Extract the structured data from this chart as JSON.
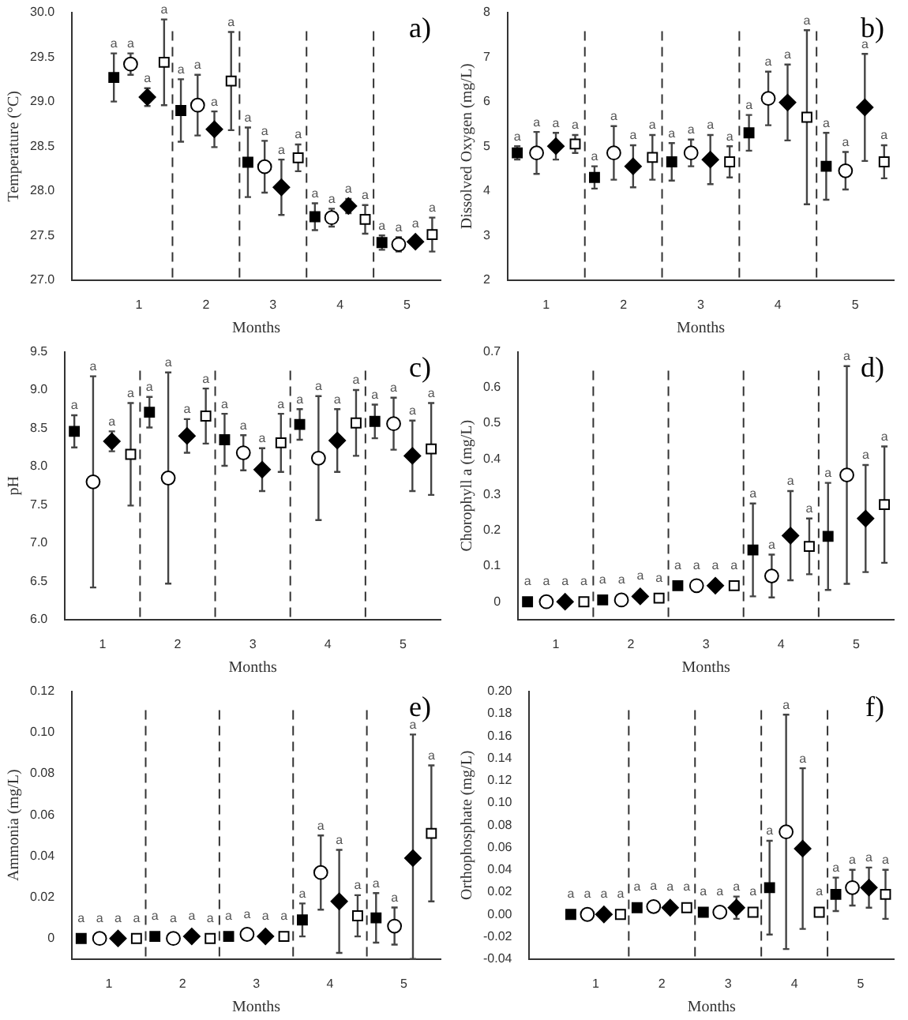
{
  "chart_data": [
    {
      "type": "scatter",
      "title": "a)",
      "xlabel": "Months",
      "ylabel": "Temperature (°C)",
      "xlim": [
        0,
        5.5
      ],
      "xticks": [
        1,
        2,
        3,
        4,
        5
      ],
      "ylim": [
        27,
        30
      ],
      "yticks": [
        {
          "value": 27,
          "label": "27.0"
        },
        27.5,
        {
          "value": 28,
          "label": "28.0"
        },
        28.5,
        {
          "value": 29,
          "label": "29.0"
        },
        29.5,
        {
          "value": 30,
          "label": "30.0"
        }
      ],
      "grid": false,
      "legend": false,
      "ref_lines": [
        {
          "axis": "x",
          "value": 1.5,
          "line_style": "dashed"
        },
        {
          "axis": "x",
          "value": 2.5,
          "line_style": "dashed"
        },
        {
          "axis": "x",
          "value": 3.5,
          "line_style": "dashed"
        },
        {
          "axis": "x",
          "value": 4.5,
          "line_style": "dashed"
        }
      ],
      "series": [
        {
          "color": "#000000",
          "marker": "square",
          "x": [
            0.625,
            1.625,
            2.625,
            3.625,
            4.625
          ],
          "values": [
            29.27,
            28.9,
            28.32,
            27.71,
            27.42
          ],
          "errors": [
            0.27,
            0.35,
            0.39,
            0.15,
            0.08
          ]
        },
        {
          "color": "#ffffff",
          "marker": "circle",
          "x": [
            0.875,
            1.875,
            2.875,
            3.875,
            4.875
          ],
          "values": [
            29.42,
            28.96,
            28.27,
            27.7,
            27.4
          ],
          "errors": [
            0.12,
            0.34,
            0.29,
            0.1,
            0.08
          ]
        },
        {
          "color": "#000000",
          "marker": "diamond",
          "x": [
            1.125,
            2.125,
            3.125,
            4.125,
            5.125
          ],
          "values": [
            29.05,
            28.69,
            28.04,
            27.83,
            27.43
          ],
          "errors": [
            0.1,
            0.2,
            0.31,
            0.08,
            null
          ]
        },
        {
          "color": "#ffffff",
          "marker": "square",
          "x": [
            1.375,
            2.375,
            3.375,
            4.375,
            5.375
          ],
          "values": [
            29.44,
            29.23,
            28.37,
            27.68,
            27.51
          ],
          "errors": [
            0.48,
            0.55,
            0.15,
            0.16,
            0.19
          ]
        }
      ],
      "annotations": [
        {
          "text": "a",
          "x": 0.625,
          "y": 29.54
        },
        {
          "text": "a",
          "x": 1.625,
          "y": 29.25
        },
        {
          "text": "a",
          "x": 2.625,
          "y": 28.71
        },
        {
          "text": "a",
          "x": 3.625,
          "y": 27.86
        },
        {
          "text": "a",
          "x": 4.625,
          "y": 27.5
        },
        {
          "text": "a",
          "x": 0.875,
          "y": 29.54
        },
        {
          "text": "a",
          "x": 1.875,
          "y": 29.3
        },
        {
          "text": "a",
          "x": 2.875,
          "y": 28.56
        },
        {
          "text": "a",
          "x": 3.875,
          "y": 27.8
        },
        {
          "text": "a",
          "x": 4.875,
          "y": 27.48
        },
        {
          "text": "a",
          "x": 1.125,
          "y": 29.15
        },
        {
          "text": "a",
          "x": 2.125,
          "y": 28.89
        },
        {
          "text": "a",
          "x": 3.125,
          "y": 28.35
        },
        {
          "text": "a",
          "x": 4.125,
          "y": 27.91
        },
        {
          "text": "a",
          "x": 5.125,
          "y": 27.52
        },
        {
          "text": "a",
          "x": 1.375,
          "y": 29.92
        },
        {
          "text": "a",
          "x": 2.375,
          "y": 29.78
        },
        {
          "text": "a",
          "x": 3.375,
          "y": 28.52
        },
        {
          "text": "a",
          "x": 4.375,
          "y": 27.84
        },
        {
          "text": "a",
          "x": 5.375,
          "y": 27.7
        }
      ]
    },
    {
      "type": "scatter",
      "title": "b)",
      "xlabel": "Months",
      "ylabel": "Dissolved Oxygen (mg/L)",
      "xlim": [
        0.5,
        5.5
      ],
      "xticks": [
        1,
        2,
        3,
        4,
        5
      ],
      "ylim": [
        2,
        8
      ],
      "yticks": [
        2,
        3,
        4,
        5,
        6,
        7,
        8
      ],
      "grid": false,
      "legend": false,
      "ref_lines": [
        {
          "axis": "x",
          "value": 1.5,
          "line_style": "dashed"
        },
        {
          "axis": "x",
          "value": 2.5,
          "line_style": "dashed"
        },
        {
          "axis": "x",
          "value": 3.5,
          "line_style": "dashed"
        },
        {
          "axis": "x",
          "value": 4.5,
          "line_style": "dashed"
        }
      ],
      "series": [
        {
          "color": "#000000",
          "marker": "square",
          "x": [
            0.625,
            1.625,
            2.625,
            3.625,
            4.625
          ],
          "values": [
            4.85,
            4.3,
            4.65,
            5.3,
            4.55
          ],
          "errors": [
            0.15,
            0.25,
            0.42,
            0.4,
            0.75
          ]
        },
        {
          "color": "#ffffff",
          "marker": "circle",
          "x": [
            0.875,
            1.875,
            2.875,
            3.875,
            4.875
          ],
          "values": [
            4.85,
            4.85,
            4.85,
            6.07,
            4.45
          ],
          "errors": [
            0.47,
            0.6,
            0.3,
            0.6,
            0.42
          ]
        },
        {
          "color": "#000000",
          "marker": "diamond",
          "x": [
            1.125,
            2.125,
            3.125,
            4.125,
            5.125
          ],
          "values": [
            5.0,
            4.55,
            4.7,
            5.98,
            5.87
          ],
          "errors": [
            0.3,
            0.47,
            0.55,
            0.85,
            1.2
          ]
        },
        {
          "color": "#ffffff",
          "marker": "square",
          "x": [
            1.375,
            2.375,
            3.375,
            4.375,
            5.375
          ],
          "values": [
            5.05,
            4.75,
            4.65,
            5.65,
            4.65
          ],
          "errors": [
            0.2,
            0.5,
            0.35,
            1.95,
            0.37
          ]
        }
      ],
      "annotations": [
        {
          "text": "a",
          "x": 0.625,
          "y": 5.0
        },
        {
          "text": "a",
          "x": 1.625,
          "y": 4.55
        },
        {
          "text": "a",
          "x": 2.625,
          "y": 5.07
        },
        {
          "text": "a",
          "x": 3.625,
          "y": 5.7
        },
        {
          "text": "a",
          "x": 4.625,
          "y": 5.3
        },
        {
          "text": "a",
          "x": 0.875,
          "y": 5.32
        },
        {
          "text": "a",
          "x": 1.875,
          "y": 5.45
        },
        {
          "text": "a",
          "x": 2.875,
          "y": 5.15
        },
        {
          "text": "a",
          "x": 3.875,
          "y": 6.67
        },
        {
          "text": "a",
          "x": 4.875,
          "y": 4.87
        },
        {
          "text": "a",
          "x": 1.125,
          "y": 5.3
        },
        {
          "text": "a",
          "x": 2.125,
          "y": 5.02
        },
        {
          "text": "a",
          "x": 3.125,
          "y": 5.25
        },
        {
          "text": "a",
          "x": 4.125,
          "y": 6.83
        },
        {
          "text": "a",
          "x": 5.125,
          "y": 7.07
        },
        {
          "text": "a",
          "x": 1.375,
          "y": 5.25
        },
        {
          "text": "a",
          "x": 2.375,
          "y": 5.25
        },
        {
          "text": "a",
          "x": 3.375,
          "y": 5.0
        },
        {
          "text": "a",
          "x": 4.375,
          "y": 7.6
        },
        {
          "text": "a",
          "x": 5.375,
          "y": 5.02
        }
      ]
    },
    {
      "type": "scatter",
      "title": "c)",
      "xlabel": "Months",
      "ylabel": "pH",
      "xlim": [
        0.5,
        5.5
      ],
      "xticks": [
        1,
        2,
        3,
        4,
        5
      ],
      "ylim": [
        6,
        9.5
      ],
      "yticks": [
        {
          "value": 6,
          "label": "6.0"
        },
        6.5,
        {
          "value": 7,
          "label": "7.0"
        },
        7.5,
        {
          "value": 8,
          "label": "8.0"
        },
        8.5,
        {
          "value": 9,
          "label": "9.0"
        },
        9.5
      ],
      "grid": false,
      "legend": false,
      "ref_lines": [
        {
          "axis": "x",
          "value": 1.5,
          "line_style": "dashed"
        },
        {
          "axis": "x",
          "value": 2.5,
          "line_style": "dashed"
        },
        {
          "axis": "x",
          "value": 3.5,
          "line_style": "dashed"
        },
        {
          "axis": "x",
          "value": 4.5,
          "line_style": "dashed"
        }
      ],
      "series": [
        {
          "color": "#000000",
          "marker": "square",
          "x": [
            0.625,
            1.625,
            2.625,
            3.625,
            4.625
          ],
          "values": [
            8.46,
            8.71,
            8.35,
            8.55,
            8.59
          ],
          "errors": [
            0.21,
            0.2,
            0.34,
            0.2,
            0.22
          ]
        },
        {
          "color": "#ffffff",
          "marker": "circle",
          "x": [
            0.875,
            1.875,
            2.875,
            3.875,
            4.875
          ],
          "values": [
            7.8,
            7.85,
            8.18,
            8.11,
            8.56
          ],
          "errors": [
            1.38,
            1.38,
            0.23,
            0.81,
            0.34
          ]
        },
        {
          "color": "#000000",
          "marker": "diamond",
          "x": [
            1.125,
            2.125,
            3.125,
            4.125,
            5.125
          ],
          "values": [
            8.33,
            8.4,
            7.96,
            8.34,
            8.14
          ],
          "errors": [
            0.13,
            0.22,
            0.28,
            0.41,
            0.46
          ]
        },
        {
          "color": "#ffffff",
          "marker": "square",
          "x": [
            1.375,
            2.375,
            3.375,
            4.375,
            5.375
          ],
          "values": [
            8.16,
            8.66,
            8.31,
            8.57,
            8.23
          ],
          "errors": [
            0.67,
            0.36,
            0.38,
            0.43,
            0.6
          ]
        }
      ],
      "annotations": [
        {
          "text": "a",
          "x": 0.625,
          "y": 8.67
        },
        {
          "text": "a",
          "x": 1.625,
          "y": 8.91
        },
        {
          "text": "a",
          "x": 2.625,
          "y": 8.69
        },
        {
          "text": "a",
          "x": 3.625,
          "y": 8.75
        },
        {
          "text": "a",
          "x": 4.625,
          "y": 8.81
        },
        {
          "text": "a",
          "x": 0.875,
          "y": 9.18
        },
        {
          "text": "a",
          "x": 1.875,
          "y": 9.23
        },
        {
          "text": "a",
          "x": 2.875,
          "y": 8.41
        },
        {
          "text": "a",
          "x": 3.875,
          "y": 8.92
        },
        {
          "text": "a",
          "x": 4.875,
          "y": 8.9
        },
        {
          "text": "a",
          "x": 1.125,
          "y": 8.46
        },
        {
          "text": "a",
          "x": 2.125,
          "y": 8.62
        },
        {
          "text": "a",
          "x": 3.125,
          "y": 8.24
        },
        {
          "text": "a",
          "x": 4.125,
          "y": 8.75
        },
        {
          "text": "a",
          "x": 5.125,
          "y": 8.6
        },
        {
          "text": "a",
          "x": 1.375,
          "y": 8.83
        },
        {
          "text": "a",
          "x": 2.375,
          "y": 9.02
        },
        {
          "text": "a",
          "x": 3.375,
          "y": 8.69
        },
        {
          "text": "a",
          "x": 4.375,
          "y": 9.0
        },
        {
          "text": "a",
          "x": 5.375,
          "y": 8.83
        }
      ]
    },
    {
      "type": "scatter",
      "title": "d)",
      "xlabel": "Months",
      "ylabel": "Chorophyll a (mg/L)",
      "xlim": [
        0.5,
        5.5
      ],
      "xticks": [
        1,
        2,
        3,
        4,
        5
      ],
      "ylim": [
        -0.05,
        0.7
      ],
      "yticks": [
        0,
        0.1,
        0.2,
        0.3,
        0.4,
        0.5,
        0.6,
        0.7
      ],
      "grid": false,
      "legend": false,
      "ref_lines": [
        {
          "axis": "x",
          "value": 1.5,
          "line_style": "dashed"
        },
        {
          "axis": "x",
          "value": 2.5,
          "line_style": "dashed"
        },
        {
          "axis": "x",
          "value": 3.5,
          "line_style": "dashed"
        },
        {
          "axis": "x",
          "value": 4.5,
          "line_style": "dashed"
        }
      ],
      "series": [
        {
          "color": "#000000",
          "marker": "square",
          "x": [
            0.625,
            1.625,
            2.625,
            3.625,
            4.625
          ],
          "values": [
            0,
            0.005,
            0.045,
            0.145,
            0.183
          ],
          "errors": [
            null,
            null,
            null,
            0.13,
            0.15
          ]
        },
        {
          "color": "#ffffff",
          "marker": "circle",
          "x": [
            0.875,
            1.875,
            2.875,
            3.875,
            4.875
          ],
          "values": [
            0,
            0.005,
            0.045,
            0.072,
            0.355
          ],
          "errors": [
            null,
            null,
            null,
            0.06,
            0.305
          ]
        },
        {
          "color": "#000000",
          "marker": "diamond",
          "x": [
            1.125,
            2.125,
            3.125,
            4.125,
            5.125
          ],
          "values": [
            0,
            0.015,
            0.045,
            0.185,
            0.233
          ],
          "errors": [
            null,
            null,
            null,
            0.125,
            0.15
          ]
        },
        {
          "color": "#ffffff",
          "marker": "square",
          "x": [
            1.375,
            2.375,
            3.375,
            4.375,
            5.375
          ],
          "values": [
            0,
            0.01,
            0.045,
            0.155,
            0.272
          ],
          "errors": [
            null,
            null,
            null,
            0.078,
            0.163
          ]
        }
      ],
      "annotations": [
        {
          "text": "a",
          "x": 0.625,
          "y": 0.03
        },
        {
          "text": "a",
          "x": 1.625,
          "y": 0.035
        },
        {
          "text": "a",
          "x": 2.625,
          "y": 0.075
        },
        {
          "text": "a",
          "x": 3.625,
          "y": 0.275
        },
        {
          "text": "a",
          "x": 4.625,
          "y": 0.333
        },
        {
          "text": "a",
          "x": 0.875,
          "y": 0.03
        },
        {
          "text": "a",
          "x": 1.875,
          "y": 0.035
        },
        {
          "text": "a",
          "x": 2.875,
          "y": 0.075
        },
        {
          "text": "a",
          "x": 3.875,
          "y": 0.132
        },
        {
          "text": "a",
          "x": 4.875,
          "y": 0.66
        },
        {
          "text": "a",
          "x": 1.125,
          "y": 0.03
        },
        {
          "text": "a",
          "x": 2.125,
          "y": 0.045
        },
        {
          "text": "a",
          "x": 3.125,
          "y": 0.075
        },
        {
          "text": "a",
          "x": 4.125,
          "y": 0.31
        },
        {
          "text": "a",
          "x": 5.125,
          "y": 0.383
        },
        {
          "text": "a",
          "x": 1.375,
          "y": 0.03
        },
        {
          "text": "a",
          "x": 2.375,
          "y": 0.04
        },
        {
          "text": "a",
          "x": 3.375,
          "y": 0.075
        },
        {
          "text": "a",
          "x": 4.375,
          "y": 0.233
        },
        {
          "text": "a",
          "x": 5.375,
          "y": 0.435
        }
      ]
    },
    {
      "type": "scatter",
      "title": "e)",
      "xlabel": "Months",
      "ylabel": "Ammonia (mg/L)",
      "xlim": [
        0.5,
        5.5
      ],
      "xticks": [
        1,
        2,
        3,
        4,
        5
      ],
      "ylim": [
        -0.01,
        0.12
      ],
      "yticks": [
        0,
        0.02,
        0.04,
        0.06,
        0.08,
        {
          "value": 0.1,
          "label": "0.10"
        },
        0.12
      ],
      "grid": false,
      "legend": false,
      "ref_lines": [
        {
          "axis": "x",
          "value": 1.5,
          "line_style": "dashed"
        },
        {
          "axis": "x",
          "value": 2.5,
          "line_style": "dashed"
        },
        {
          "axis": "x",
          "value": 3.5,
          "line_style": "dashed"
        },
        {
          "axis": "x",
          "value": 4.5,
          "line_style": "dashed"
        }
      ],
      "series": [
        {
          "color": "#000000",
          "marker": "square",
          "x": [
            0.625,
            1.625,
            2.625,
            3.625,
            4.625
          ],
          "values": [
            0,
            0.001,
            0.001,
            0.009,
            0.01
          ],
          "errors": [
            null,
            null,
            null,
            0.008,
            0.012
          ]
        },
        {
          "color": "#ffffff",
          "marker": "circle",
          "x": [
            0.875,
            1.875,
            2.875,
            3.875,
            4.875
          ],
          "values": [
            0,
            0,
            0.002,
            0.032,
            0.006
          ],
          "errors": [
            null,
            null,
            null,
            0.018,
            0.009
          ]
        },
        {
          "color": "#000000",
          "marker": "diamond",
          "x": [
            1.125,
            2.125,
            3.125,
            4.125,
            5.125
          ],
          "values": [
            0,
            0.001,
            0.001,
            0.018,
            0.039
          ],
          "errors": [
            null,
            null,
            null,
            0.025,
            [
              -0.01,
              0.099
            ]
          ]
        },
        {
          "color": "#ffffff",
          "marker": "square",
          "x": [
            1.375,
            2.375,
            3.375,
            4.375,
            5.375
          ],
          "values": [
            0,
            0,
            0.001,
            0.011,
            0.051
          ],
          "errors": [
            null,
            null,
            null,
            0.01,
            0.033
          ]
        }
      ],
      "annotations": [
        {
          "text": "a",
          "x": 0.625,
          "y": 0.005
        },
        {
          "text": "a",
          "x": 1.625,
          "y": 0.006
        },
        {
          "text": "a",
          "x": 2.625,
          "y": 0.006
        },
        {
          "text": "a",
          "x": 3.625,
          "y": 0.017
        },
        {
          "text": "a",
          "x": 4.625,
          "y": 0.022
        },
        {
          "text": "a",
          "x": 0.875,
          "y": 0.005
        },
        {
          "text": "a",
          "x": 1.875,
          "y": 0.005
        },
        {
          "text": "a",
          "x": 2.875,
          "y": 0.007
        },
        {
          "text": "a",
          "x": 3.875,
          "y": 0.05
        },
        {
          "text": "a",
          "x": 4.875,
          "y": 0.015
        },
        {
          "text": "a",
          "x": 1.125,
          "y": 0.005
        },
        {
          "text": "a",
          "x": 2.125,
          "y": 0.006
        },
        {
          "text": "a",
          "x": 3.125,
          "y": 0.006
        },
        {
          "text": "a",
          "x": 4.125,
          "y": 0.043
        },
        {
          "text": "a",
          "x": 5.125,
          "y": 0.099
        },
        {
          "text": "a",
          "x": 1.375,
          "y": 0.005
        },
        {
          "text": "a",
          "x": 2.375,
          "y": 0.005
        },
        {
          "text": "a",
          "x": 3.375,
          "y": 0.006
        },
        {
          "text": "a",
          "x": 4.375,
          "y": 0.021
        },
        {
          "text": "a",
          "x": 5.375,
          "y": 0.084
        }
      ]
    },
    {
      "type": "scatter",
      "title": "f)",
      "xlabel": "Months",
      "ylabel": "Orthophosphate (mg/L)",
      "xlim": [
        0,
        5.5
      ],
      "xticks": [
        1,
        2,
        3,
        4,
        5
      ],
      "ylim": [
        -0.04,
        0.2
      ],
      "yticks": [
        -0.04,
        -0.02,
        {
          "value": 0,
          "label": "0.00"
        },
        0.02,
        0.04,
        0.06,
        0.08,
        {
          "value": 0.1,
          "label": "0.10"
        },
        0.12,
        0.14,
        0.16,
        0.18,
        {
          "value": 0.2,
          "label": "0.20"
        }
      ],
      "grid": false,
      "legend": false,
      "ref_lines": [
        {
          "axis": "x",
          "value": 1.5,
          "line_style": "dashed"
        },
        {
          "axis": "x",
          "value": 2.5,
          "line_style": "dashed"
        },
        {
          "axis": "x",
          "value": 3.5,
          "line_style": "dashed"
        },
        {
          "axis": "x",
          "value": 4.5,
          "line_style": "dashed"
        }
      ],
      "series": [
        {
          "color": "#000000",
          "marker": "square",
          "x": [
            0.625,
            1.625,
            2.625,
            3.625,
            4.625
          ],
          "values": [
            0,
            0.006,
            0.002,
            0.024,
            0.018
          ],
          "errors": [
            null,
            null,
            null,
            0.042,
            0.015
          ]
        },
        {
          "color": "#ffffff",
          "marker": "circle",
          "x": [
            0.875,
            1.875,
            2.875,
            3.875,
            4.875
          ],
          "values": [
            0,
            0.007,
            0.002,
            0.074,
            0.024
          ],
          "errors": [
            null,
            null,
            null,
            0.105,
            0.016
          ]
        },
        {
          "color": "#000000",
          "marker": "diamond",
          "x": [
            1.125,
            2.125,
            3.125,
            4.125,
            5.125
          ],
          "values": [
            0,
            0.006,
            0.006,
            0.059,
            0.024
          ],
          "errors": [
            null,
            null,
            0.01,
            0.072,
            0.018
          ]
        },
        {
          "color": "#ffffff",
          "marker": "square",
          "x": [
            1.375,
            2.375,
            3.375,
            4.375,
            5.375
          ],
          "values": [
            0,
            0.006,
            0.002,
            0.002,
            0.018
          ],
          "errors": [
            null,
            null,
            null,
            null,
            0.022
          ]
        }
      ],
      "annotations": [
        {
          "text": "a",
          "x": 0.625,
          "y": 0.01
        },
        {
          "text": "a",
          "x": 1.625,
          "y": 0.016
        },
        {
          "text": "a",
          "x": 2.625,
          "y": 0.012
        },
        {
          "text": "a",
          "x": 3.625,
          "y": 0.066
        },
        {
          "text": "a",
          "x": 4.625,
          "y": 0.033
        },
        {
          "text": "a",
          "x": 0.875,
          "y": 0.01
        },
        {
          "text": "a",
          "x": 1.875,
          "y": 0.017
        },
        {
          "text": "a",
          "x": 2.875,
          "y": 0.012
        },
        {
          "text": "a",
          "x": 3.875,
          "y": 0.179
        },
        {
          "text": "a",
          "x": 4.875,
          "y": 0.04
        },
        {
          "text": "a",
          "x": 1.125,
          "y": 0.01
        },
        {
          "text": "a",
          "x": 2.125,
          "y": 0.016
        },
        {
          "text": "a",
          "x": 3.125,
          "y": 0.016
        },
        {
          "text": "a",
          "x": 4.125,
          "y": 0.131
        },
        {
          "text": "a",
          "x": 5.125,
          "y": 0.042
        },
        {
          "text": "a",
          "x": 1.375,
          "y": 0.01
        },
        {
          "text": "a",
          "x": 2.375,
          "y": 0.016
        },
        {
          "text": "a",
          "x": 3.375,
          "y": 0.012
        },
        {
          "text": "a",
          "x": 4.375,
          "y": 0.012
        },
        {
          "text": "a",
          "x": 5.375,
          "y": 0.04
        }
      ]
    }
  ]
}
